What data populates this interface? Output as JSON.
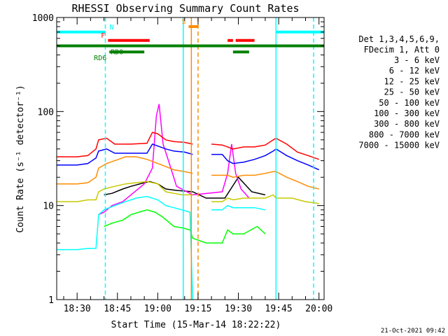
{
  "chart_data": {
    "type": "line",
    "title": "RHESSI Observing Summary Count Rates",
    "xlabel": "Start Time (15-Mar-14 18:22:22)",
    "ylabel": "Count Rate (s⁻¹ detector⁻¹)",
    "yscale": "log",
    "ylim": [
      1,
      1000
    ],
    "xlim_min": [
      22.4,
      121.9
    ],
    "y_ticks": [
      "1",
      "10",
      "100",
      "1000"
    ],
    "x_ticks": [
      {
        "min": 30,
        "label": "18:30"
      },
      {
        "min": 45,
        "label": "18:45"
      },
      {
        "min": 60,
        "label": "19:00"
      },
      {
        "min": 75,
        "label": "19:15"
      },
      {
        "min": 90,
        "label": "19:30"
      },
      {
        "min": 105,
        "label": "19:45"
      },
      {
        "min": 120,
        "label": "20:00"
      }
    ],
    "legend_header": [
      "Det 1,3,4,5,6,9,",
      "FDecim 1, Att 0"
    ],
    "legend_position": "right",
    "series": [
      {
        "name": "3 - 6 keV",
        "color": "#000000",
        "x": [
          22.4,
          33,
          35,
          38,
          40,
          43,
          47,
          50,
          55,
          57,
          60,
          63,
          67,
          73,
          78,
          82,
          85,
          90,
          95,
          100,
          103,
          107,
          110,
          115,
          121.9
        ],
        "values": [
          null,
          null,
          null,
          null,
          13,
          13.5,
          15,
          16,
          17.5,
          18,
          17,
          15,
          14.5,
          14,
          12,
          12,
          12,
          20,
          14,
          13,
          null,
          null,
          null,
          null,
          null
        ]
      },
      {
        "name": "6 - 12 keV",
        "color": "#ff00ff",
        "x": [
          38,
          40,
          43,
          47,
          50,
          55,
          58,
          59.5,
          60.5,
          62,
          64,
          67,
          73,
          84,
          86,
          87.5,
          89,
          91,
          94
        ],
        "values": [
          8,
          8.5,
          10,
          11,
          13,
          17,
          25,
          90,
          120,
          45,
          30,
          16,
          13,
          14,
          22,
          45,
          22,
          15,
          12
        ]
      },
      {
        "name": "12 - 25 keV",
        "color": "#00ff00",
        "x": [
          22.4,
          38,
          40,
          43,
          47,
          50,
          53,
          56,
          59,
          62,
          66,
          69,
          72,
          73,
          78,
          84,
          86,
          88,
          92,
          97,
          100,
          103,
          121.9
        ],
        "values": [
          null,
          null,
          6,
          6.5,
          7,
          8,
          8.5,
          9,
          8.5,
          7.5,
          6,
          5.8,
          5.5,
          4.5,
          4,
          4,
          5.5,
          5,
          5,
          6,
          5,
          null,
          null
        ]
      },
      {
        "name": "25 - 50 keV",
        "color": "#00ffff",
        "x": [
          22.4,
          30,
          34,
          37,
          38,
          40,
          44,
          48,
          52,
          56,
          60,
          63,
          66,
          69,
          72,
          73,
          74,
          78,
          80,
          84,
          86,
          88,
          92,
          96,
          100,
          103,
          104,
          106,
          110,
          115,
          120
        ],
        "values": [
          3.4,
          3.4,
          3.5,
          3.5,
          8,
          9,
          10,
          11,
          12,
          12.5,
          11.5,
          10,
          9.5,
          9,
          8.5,
          1,
          null,
          null,
          9,
          9,
          10,
          9.5,
          9.5,
          9.5,
          9,
          null,
          null,
          null,
          null,
          null,
          null
        ]
      },
      {
        "name": "50 - 100 keV",
        "color": "#c8c800",
        "x": [
          22.4,
          30,
          34,
          37,
          38,
          40,
          44,
          48,
          52,
          56,
          60,
          63,
          66,
          69,
          72,
          73,
          78,
          80,
          84,
          86,
          88,
          92,
          96,
          100,
          103,
          104,
          106,
          110,
          115,
          120
        ],
        "values": [
          11,
          11,
          11.5,
          11.5,
          14,
          15,
          16,
          17,
          17.5,
          18,
          17,
          14,
          13.5,
          13,
          13,
          13,
          null,
          11,
          11,
          12,
          11.5,
          12,
          12,
          12,
          13,
          12,
          12,
          12,
          11,
          10.5
        ]
      },
      {
        "name": "100 - 300 keV",
        "color": "#ff0000",
        "x": [
          22.4,
          30,
          34,
          37,
          38,
          41,
          44,
          50,
          56,
          58,
          60,
          63,
          66,
          70,
          73,
          78,
          80,
          84,
          86,
          88,
          92,
          96,
          100,
          103,
          104,
          108,
          112,
          116,
          120
        ],
        "values": [
          33,
          33,
          34,
          40,
          50,
          52,
          45,
          45,
          46,
          60,
          58,
          50,
          48,
          47,
          45,
          null,
          45,
          44,
          42,
          40,
          42,
          42,
          44,
          50,
          52,
          45,
          37,
          34,
          31
        ]
      },
      {
        "name": "300 - 800 keV",
        "color": "#0000ff",
        "x": [
          22.4,
          30,
          34,
          37,
          38,
          41,
          44,
          50,
          56,
          58,
          60,
          63,
          66,
          70,
          73,
          78,
          80,
          84,
          86,
          88,
          92,
          96,
          100,
          103,
          104,
          108,
          112,
          116,
          120
        ],
        "values": [
          27,
          27,
          28,
          32,
          38,
          40,
          36,
          36,
          36,
          45,
          43,
          40,
          38,
          37,
          35,
          null,
          35,
          35,
          30,
          28,
          29,
          31,
          34,
          38,
          40,
          34,
          30,
          27,
          24
        ]
      },
      {
        "name": "800 - 7000 keV",
        "color": "#ff8c00",
        "x": [
          22.4,
          30,
          34,
          37,
          38,
          41,
          44,
          48,
          52,
          56,
          60,
          63,
          66,
          70,
          73,
          78,
          80,
          84,
          86,
          88,
          92,
          96,
          100,
          103,
          104,
          108,
          112,
          116,
          120
        ],
        "values": [
          17,
          17,
          17.5,
          20,
          25,
          28,
          30,
          33,
          33,
          31,
          28,
          26,
          24,
          23,
          22,
          null,
          21,
          21,
          21,
          20,
          21,
          21,
          22,
          23,
          23,
          20,
          18,
          16,
          15
        ]
      },
      {
        "name": "7000 - 15000 keV",
        "color": "#808000",
        "x": [
          22.4,
          121.9
        ],
        "values": [
          null,
          null
        ]
      }
    ],
    "annotations": [
      {
        "label": "N",
        "color": "#00ffff",
        "level": 700,
        "segments": [
          [
            22.4,
            40.5
          ],
          [
            104,
            121.9
          ]
        ]
      },
      {
        "label": "F",
        "color": "#ff0000",
        "level": 570,
        "segments": [
          [
            41.5,
            57
          ],
          [
            86,
            88
          ],
          [
            89,
            96
          ]
        ]
      },
      {
        "label": "RD0",
        "color": "#008000",
        "level": 500,
        "segments": [
          [
            22.4,
            121.9
          ]
        ]
      },
      {
        "label": "RD6",
        "color": "#008000",
        "level": 430,
        "segments": [
          [
            42,
            55
          ],
          [
            88,
            94
          ]
        ]
      },
      {
        "label": "S",
        "color": "#ff8c00",
        "level": 800,
        "segments": [
          [
            71.5,
            75
          ]
        ]
      }
    ],
    "vertical_markers": [
      {
        "min": 40.5,
        "color": "#00ffff",
        "style": "dashed"
      },
      {
        "min": 69.5,
        "color": "#00ffff",
        "style": "solid"
      },
      {
        "min": 72.5,
        "color": "#ff8c00",
        "style": "solid"
      },
      {
        "min": 75,
        "color": "#ff8c00",
        "style": "dashed"
      },
      {
        "min": 104,
        "color": "#00ffff",
        "style": "solid"
      },
      {
        "min": 118,
        "color": "#00ffff",
        "style": "dashed"
      }
    ]
  },
  "footer": {
    "timestamp": "21-Oct-2021 09:42"
  }
}
